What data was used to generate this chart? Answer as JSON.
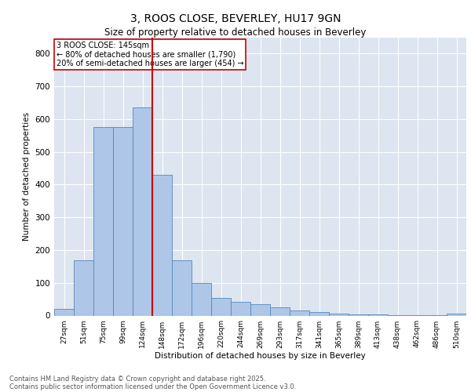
{
  "title1": "3, ROOS CLOSE, BEVERLEY, HU17 9GN",
  "title2": "Size of property relative to detached houses in Beverley",
  "xlabel": "Distribution of detached houses by size in Beverley",
  "ylabel": "Number of detached properties",
  "categories": [
    "27sqm",
    "51sqm",
    "75sqm",
    "99sqm",
    "124sqm",
    "148sqm",
    "172sqm",
    "196sqm",
    "220sqm",
    "244sqm",
    "269sqm",
    "293sqm",
    "317sqm",
    "341sqm",
    "365sqm",
    "389sqm",
    "413sqm",
    "438sqm",
    "462sqm",
    "486sqm",
    "510sqm"
  ],
  "values": [
    20,
    170,
    575,
    575,
    635,
    430,
    170,
    100,
    55,
    42,
    35,
    25,
    15,
    10,
    5,
    4,
    3,
    2,
    1,
    1,
    7
  ],
  "bar_color": "#aec6e8",
  "bar_edge_color": "#5588bb",
  "vline_x_index": 5,
  "vline_color": "#cc0000",
  "annotation_title": "3 ROOS CLOSE: 145sqm",
  "annotation_line1": "← 80% of detached houses are smaller (1,790)",
  "annotation_line2": "20% of semi-detached houses are larger (454) →",
  "annotation_box_color": "#cc0000",
  "ylim": [
    0,
    850
  ],
  "yticks": [
    0,
    100,
    200,
    300,
    400,
    500,
    600,
    700,
    800
  ],
  "background_color": "#dde5f0",
  "grid_color": "#ffffff",
  "footer1": "Contains HM Land Registry data © Crown copyright and database right 2025.",
  "footer2": "Contains public sector information licensed under the Open Government Licence v3.0."
}
